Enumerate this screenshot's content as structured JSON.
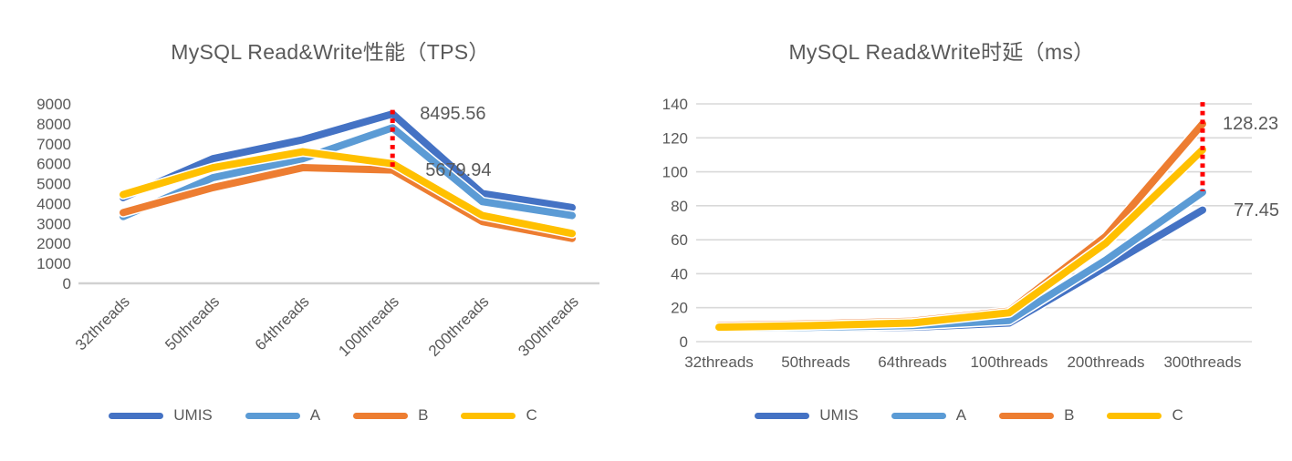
{
  "page": {
    "background": "#ffffff"
  },
  "series_colors": {
    "UMIS": "#4472C4",
    "A": "#5B9BD5",
    "B": "#ED7D31",
    "C": "#FFC000"
  },
  "chart_data": [
    {
      "type": "line",
      "title": "MySQL Read&Write性能（TPS）",
      "categories": [
        "32threads",
        "50threads",
        "64threads",
        "100threads",
        "200threads",
        "300threads"
      ],
      "y_axis": {
        "min": 0,
        "max": 9000,
        "step": 1000,
        "ticks": [
          9000,
          8000,
          7000,
          6000,
          5000,
          4000,
          3000,
          2000,
          1000,
          0
        ],
        "gridlines": false
      },
      "series": [
        {
          "name": "UMIS",
          "color": "#4472C4",
          "values": [
            4300,
            6250,
            7200,
            8495.56,
            4500,
            3800
          ]
        },
        {
          "name": "A",
          "color": "#5B9BD5",
          "values": [
            3350,
            5300,
            6250,
            7800,
            4100,
            3400
          ]
        },
        {
          "name": "B",
          "color": "#ED7D31",
          "values": [
            3550,
            4800,
            5800,
            5679.94,
            3100,
            2250
          ]
        },
        {
          "name": "C",
          "color": "#FFC000",
          "values": [
            4450,
            5800,
            6600,
            6000,
            3400,
            2500
          ]
        }
      ],
      "annotations": [
        {
          "text": "8495.56",
          "value": 8495.56,
          "series": "UMIS",
          "category": "100threads",
          "category_index": 3
        },
        {
          "text": "5679.94",
          "value": 5679.94,
          "series": "B",
          "category": "100threads",
          "category_index": 3
        }
      ],
      "dotted_line": {
        "category": "100threads",
        "category_index": 3,
        "from_value": 8700,
        "to_value": 5680,
        "color": "#FF0000"
      },
      "legend": {
        "position": "bottom",
        "labels": [
          "UMIS",
          "A",
          "B",
          "C"
        ]
      }
    },
    {
      "type": "line",
      "title": "MySQL Read&Write时延（ms）",
      "categories": [
        "32threads",
        "50threads",
        "64threads",
        "100threads",
        "200threads",
        "300threads"
      ],
      "y_axis": {
        "min": 0,
        "max": 140,
        "step": 20,
        "ticks": [
          140,
          120,
          100,
          80,
          60,
          40,
          20,
          0
        ],
        "gridlines": true
      },
      "series": [
        {
          "name": "UMIS",
          "color": "#4472C4",
          "values": [
            7.5,
            8,
            8.5,
            11,
            44,
            77.45
          ]
        },
        {
          "name": "A",
          "color": "#5B9BD5",
          "values": [
            8,
            8.5,
            9.5,
            12.5,
            48,
            88
          ]
        },
        {
          "name": "B",
          "color": "#ED7D31",
          "values": [
            9.5,
            10.5,
            12,
            18,
            62,
            128.23
          ]
        },
        {
          "name": "C",
          "color": "#FFC000",
          "values": [
            8.5,
            9.5,
            11,
            17,
            58,
            113
          ]
        }
      ],
      "annotations": [
        {
          "text": "128.23",
          "value": 128.23,
          "series": "B",
          "category": "300threads",
          "category_index": 5
        },
        {
          "text": "77.45",
          "value": 77.45,
          "series": "UMIS",
          "category": "300threads",
          "category_index": 5
        }
      ],
      "dotted_line": {
        "category": "300threads",
        "category_index": 5,
        "from_value": 141,
        "to_value": 88.5,
        "color": "#FF0000"
      },
      "legend": {
        "position": "bottom",
        "labels": [
          "UMIS",
          "A",
          "B",
          "C"
        ]
      }
    }
  ]
}
